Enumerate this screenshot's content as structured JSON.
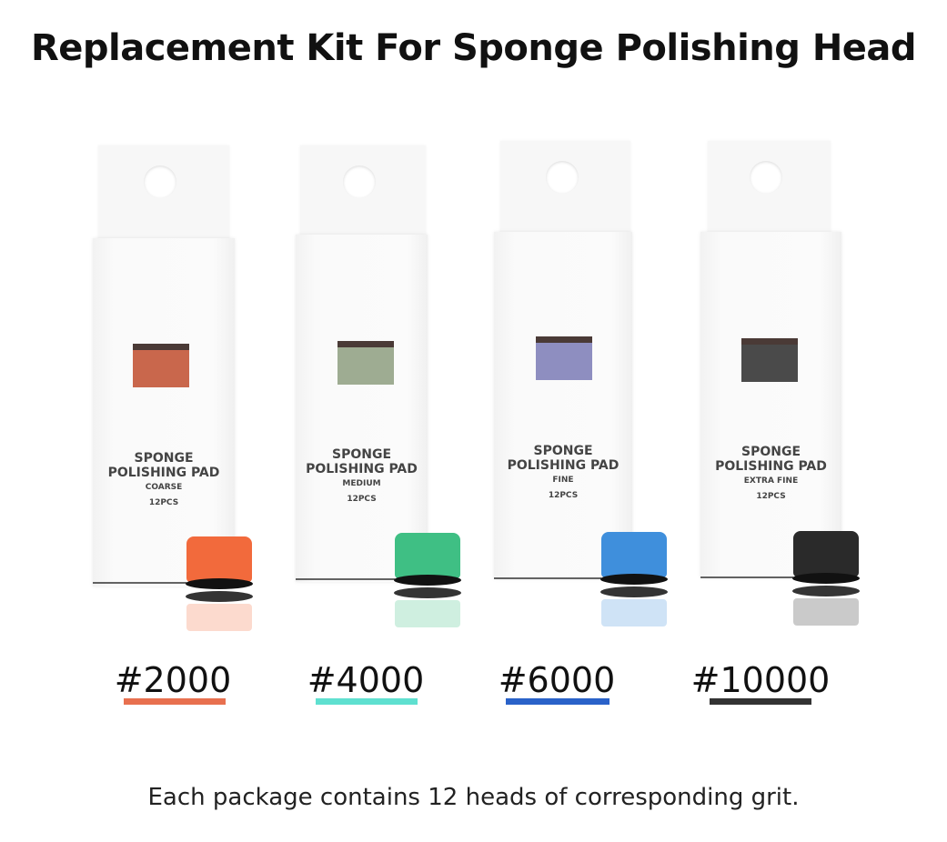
{
  "title": "Replacement Kit For Sponge Polishing Head",
  "products": [
    {
      "line1": "SPONGE",
      "line2": "POLISHING PAD",
      "grade": "COARSE",
      "count": "12PCS",
      "grit": "#2000",
      "swatch_color": "#c9674c",
      "sponge_color": "#f26a3c",
      "bar_color": "#e8704f"
    },
    {
      "line1": "SPONGE",
      "line2": "POLISHING PAD",
      "grade": "MEDIUM",
      "count": "12PCS",
      "grit": "#4000",
      "swatch_color": "#9eac92",
      "sponge_color": "#3fbf84",
      "bar_color": "#5fe0d0"
    },
    {
      "line1": "SPONGE",
      "line2": "POLISHING PAD",
      "grade": "FINE",
      "count": "12PCS",
      "grit": "#6000",
      "swatch_color": "#8e8ec0",
      "sponge_color": "#3f8fdc",
      "bar_color": "#2a62c9"
    },
    {
      "line1": "SPONGE",
      "line2": "POLISHING PAD",
      "grade": "EXTRA FINE",
      "count": "12PCS",
      "grit": "#10000",
      "swatch_color": "#4a4a4a",
      "sponge_color": "#2a2a2a",
      "bar_color": "#333333"
    }
  ],
  "footer": "Each package contains 12 heads of corresponding grit."
}
